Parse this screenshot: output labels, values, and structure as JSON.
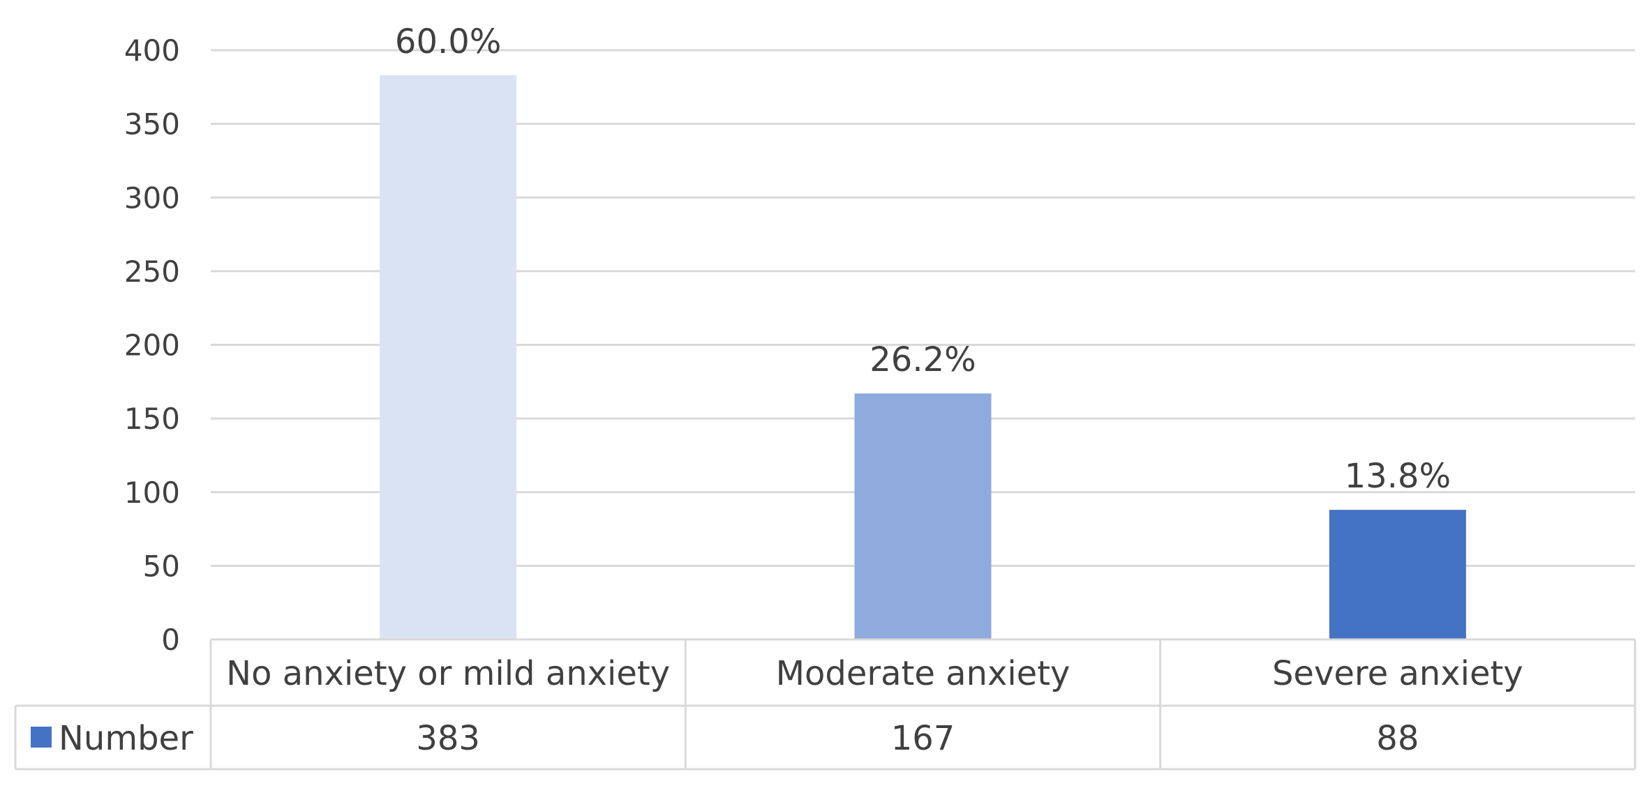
{
  "chart_data": {
    "type": "bar",
    "categories": [
      "No anxiety or mild anxiety",
      "Moderate anxiety",
      "Severe anxiety"
    ],
    "series": [
      {
        "name": "Number",
        "values": [
          383,
          167,
          88
        ],
        "colors": [
          "#dae3f3",
          "#8faadc",
          "#4472c4"
        ],
        "data_labels": [
          "60.0%",
          "26.2%",
          "13.8%"
        ]
      }
    ],
    "title": "",
    "xlabel": "",
    "ylabel": "",
    "ylim": [
      0,
      400
    ],
    "yticks": [
      0,
      50,
      100,
      150,
      200,
      250,
      300,
      350,
      400
    ],
    "grid": true,
    "legend": "data-table-left",
    "data_table": true,
    "legend_color": "#4472c4",
    "gridline_color": "#d9d9d9",
    "text_color": "#404040"
  }
}
